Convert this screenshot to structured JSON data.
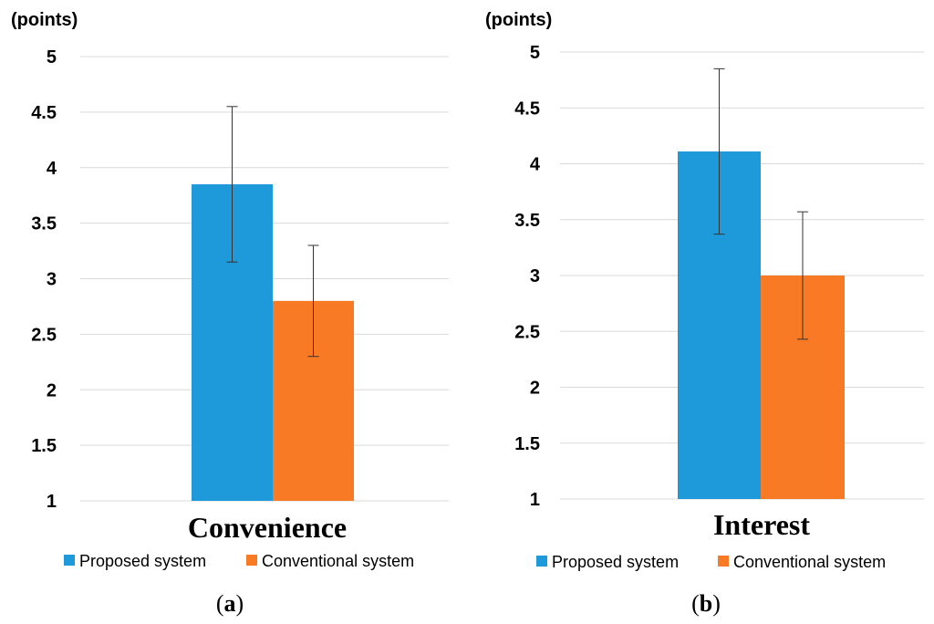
{
  "chart_data": [
    {
      "type": "bar",
      "panel_label": "a",
      "ylabel": "(points)",
      "ylim": [
        1,
        5
      ],
      "yticks": [
        "1",
        "1.5",
        "2",
        "2.5",
        "3",
        "3.5",
        "4",
        "4.5",
        "5"
      ],
      "categories": [
        "Convenience"
      ],
      "series": [
        {
          "name": "Proposed system",
          "color": "#1E9ADB",
          "values": [
            3.85
          ],
          "error": [
            0.7
          ]
        },
        {
          "name": "Conventional system",
          "color": "#F97A24",
          "values": [
            2.8
          ],
          "error": [
            0.5
          ]
        }
      ],
      "legend_position": "bottom",
      "grid": true
    },
    {
      "type": "bar",
      "panel_label": "b",
      "ylabel": "(points)",
      "ylim": [
        1,
        5
      ],
      "yticks": [
        "1",
        "1.5",
        "2",
        "2.5",
        "3",
        "3.5",
        "4",
        "4.5",
        "5"
      ],
      "categories": [
        "Interest"
      ],
      "series": [
        {
          "name": "Proposed system",
          "color": "#1E9ADB",
          "values": [
            4.11
          ],
          "error": [
            0.74
          ]
        },
        {
          "name": "Conventional system",
          "color": "#F97A24",
          "values": [
            3.0
          ],
          "error": [
            0.57
          ]
        }
      ],
      "legend_position": "bottom",
      "grid": true
    }
  ]
}
